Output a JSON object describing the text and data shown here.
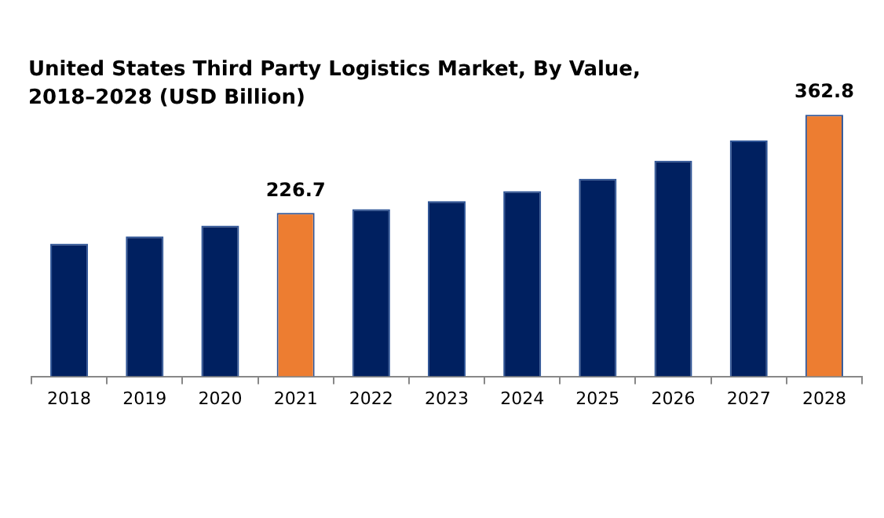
{
  "chart_data": {
    "type": "bar",
    "title": "United States Third Party Logistics Market, By Value, 2018–2028 (USD Billion)",
    "categories": [
      "2018",
      "2019",
      "2020",
      "2021",
      "2022",
      "2023",
      "2024",
      "2025",
      "2026",
      "2027",
      "2028"
    ],
    "values": [
      184,
      194,
      209,
      226.7,
      232,
      243,
      257,
      274,
      299,
      327,
      362.8
    ],
    "colors": [
      "#002060",
      "#002060",
      "#002060",
      "#ed7d31",
      "#002060",
      "#002060",
      "#002060",
      "#002060",
      "#002060",
      "#002060",
      "#ed7d31"
    ],
    "value_labels": [
      null,
      null,
      null,
      "226.7",
      null,
      null,
      null,
      null,
      null,
      null,
      "362.8"
    ],
    "grid": false,
    "legend": false
  }
}
